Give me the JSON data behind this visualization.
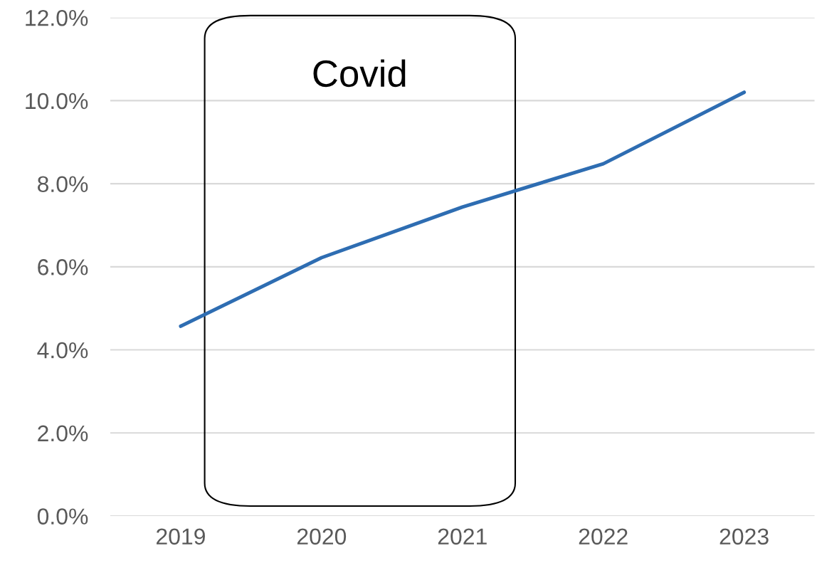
{
  "chart_data": {
    "type": "line",
    "categories": [
      "2019",
      "2020",
      "2021",
      "2022",
      "2023"
    ],
    "series": [
      {
        "color": "#2e6db2",
        "values": [
          4.57,
          6.22,
          7.44,
          8.48,
          10.2
        ]
      }
    ],
    "ylim": [
      0,
      12
    ],
    "yticks": [
      {
        "value": 0,
        "label": "0.0%"
      },
      {
        "value": 2,
        "label": "2.0%"
      },
      {
        "value": 4,
        "label": "4.0%"
      },
      {
        "value": 6,
        "label": "6.0%"
      },
      {
        "value": 8,
        "label": "8.0%"
      },
      {
        "value": 10,
        "label": "10.0%"
      },
      {
        "value": 12,
        "label": "12.0%"
      }
    ],
    "grid": "y",
    "marker": "none",
    "line_style": "solid",
    "annotations": [
      "Covid"
    ]
  }
}
